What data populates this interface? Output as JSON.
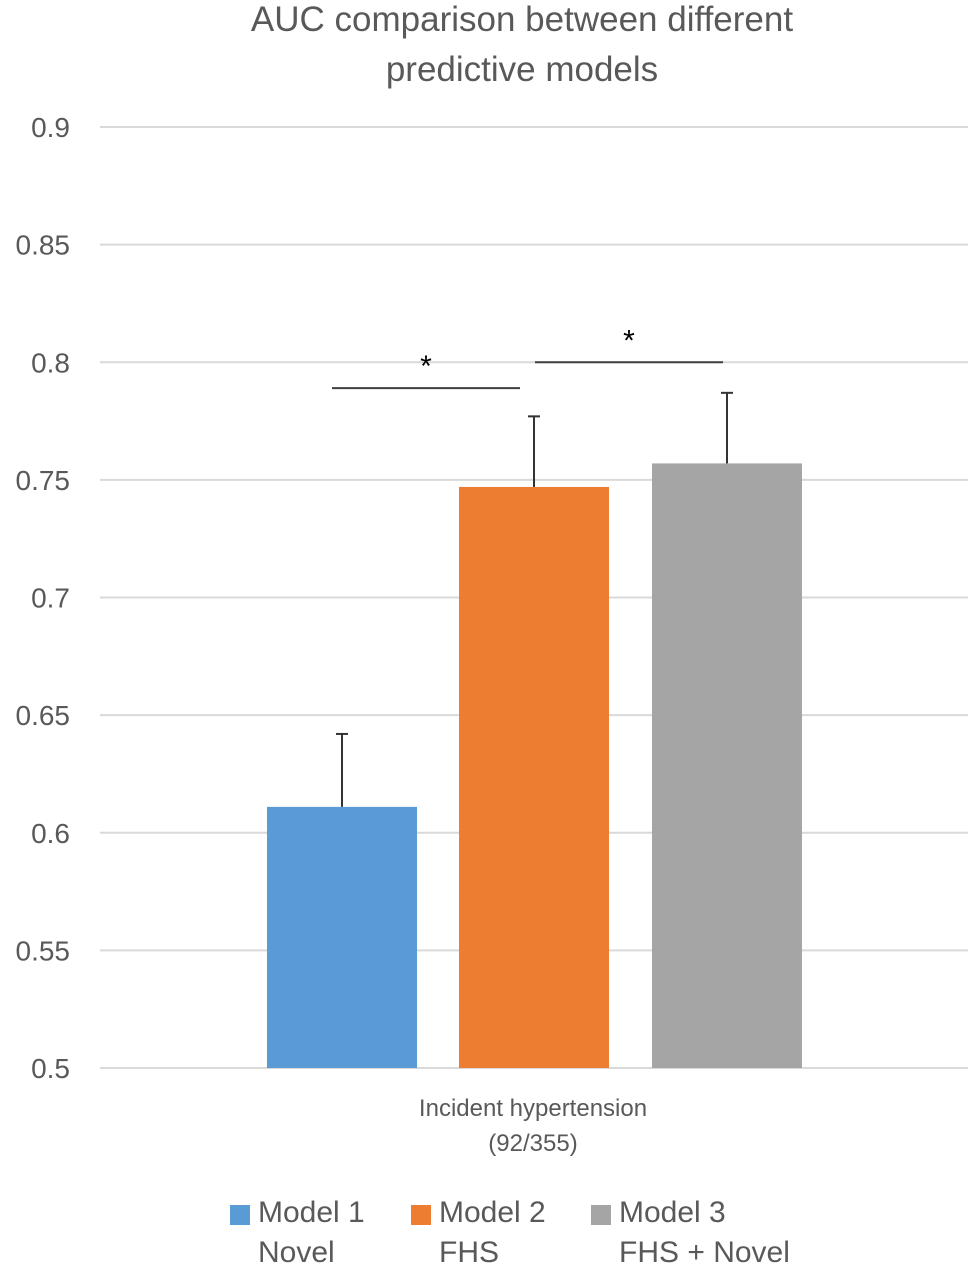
{
  "chart_data": {
    "type": "bar",
    "title_line1": "AUC comparison between different",
    "title_line2": "predictive models",
    "category_line1": "Incident hypertension",
    "category_line2": "(92/355)",
    "ylim": [
      0.5,
      0.9
    ],
    "yticks": [
      "0.9",
      "0.85",
      "0.8",
      "0.75",
      "0.7",
      "0.65",
      "0.6",
      "0.55",
      "0.5"
    ],
    "grid": true,
    "legend_position": "bottom",
    "series": [
      {
        "name": "Model 1",
        "subname": "Novel",
        "value": 0.611,
        "error": 0.031,
        "color": "#5B9BD5"
      },
      {
        "name": "Model 2",
        "subname": "FHS",
        "value": 0.747,
        "error": 0.03,
        "color": "#ED7D31"
      },
      {
        "name": "Model 3",
        "subname": "FHS + Novel",
        "value": 0.757,
        "error": 0.03,
        "color": "#A5A5A5"
      }
    ],
    "annotations": [
      {
        "text": "*",
        "between": [
          "Model 1",
          "Model 2"
        ],
        "level": 0.789
      },
      {
        "text": "*",
        "between": [
          "Model 2",
          "Model 3"
        ],
        "level": 0.8
      }
    ]
  }
}
